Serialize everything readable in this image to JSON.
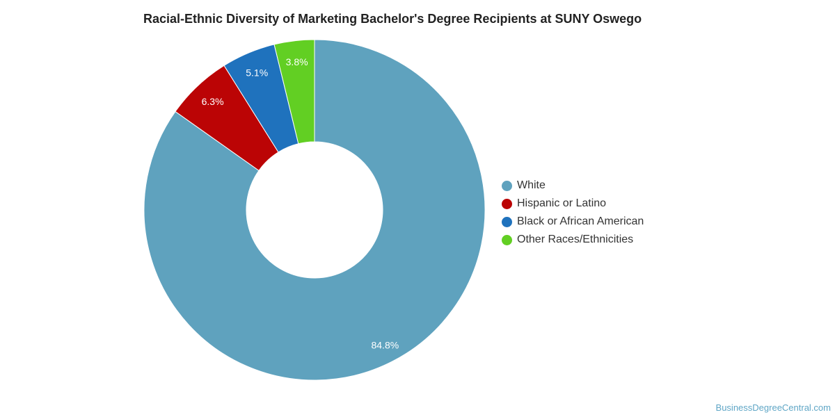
{
  "chart_data": {
    "type": "pie",
    "variant": "donut",
    "title": "Racial-Ethnic Diversity of Marketing Bachelor's Degree Recipients at SUNY Oswego",
    "categories": [
      "White",
      "Hispanic or Latino",
      "Black or African American",
      "Other Races/Ethnicities"
    ],
    "values": [
      84.8,
      6.3,
      5.1,
      3.8
    ],
    "labels": [
      "84.8%",
      "6.3%",
      "5.1%",
      "3.8%"
    ],
    "colors": [
      "#5fa2be",
      "#bb0405",
      "#1f72bd",
      "#62cf23"
    ],
    "legend_position": "right",
    "grid": false
  },
  "credit": "BusinessDegreeCentral.com"
}
